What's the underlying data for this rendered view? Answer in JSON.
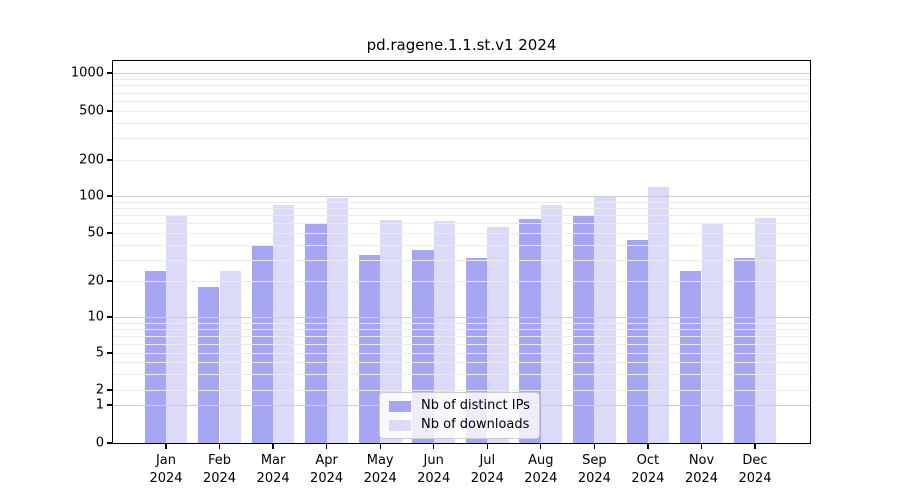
{
  "figure": {
    "background": "#ffffff"
  },
  "chart_data": {
    "type": "bar",
    "title": "pd.ragene.1.1.st.v1 2024",
    "categories": [
      "Jan",
      "Feb",
      "Mar",
      "Apr",
      "May",
      "Jun",
      "Jul",
      "Aug",
      "Sep",
      "Oct",
      "Nov",
      "Dec"
    ],
    "x_year": "2024",
    "series": [
      {
        "name": "Nb of distinct IPs",
        "color": "#a6a6f2",
        "values": [
          24,
          18,
          40,
          60,
          33,
          36,
          31,
          65,
          70,
          44,
          24,
          31
        ]
      },
      {
        "name": "Nb of downloads",
        "color": "#dbdbf9",
        "values": [
          70,
          24,
          84,
          96,
          64,
          63,
          56,
          84,
          100,
          118,
          59,
          66
        ]
      }
    ],
    "xlabel": "",
    "ylabel": "",
    "y_ticks": [
      0,
      1,
      2,
      5,
      10,
      20,
      50,
      100,
      200,
      500,
      1000
    ],
    "y_scale": "asinh",
    "ylim": [
      0,
      1250
    ],
    "grid": "horizontal major+minor, drawn above bars",
    "legend_position": "lower center",
    "colors": {
      "grid_major": "#cccccc",
      "grid_minor": "#ebebeb",
      "axis": "#000000",
      "text": "#000000"
    }
  }
}
